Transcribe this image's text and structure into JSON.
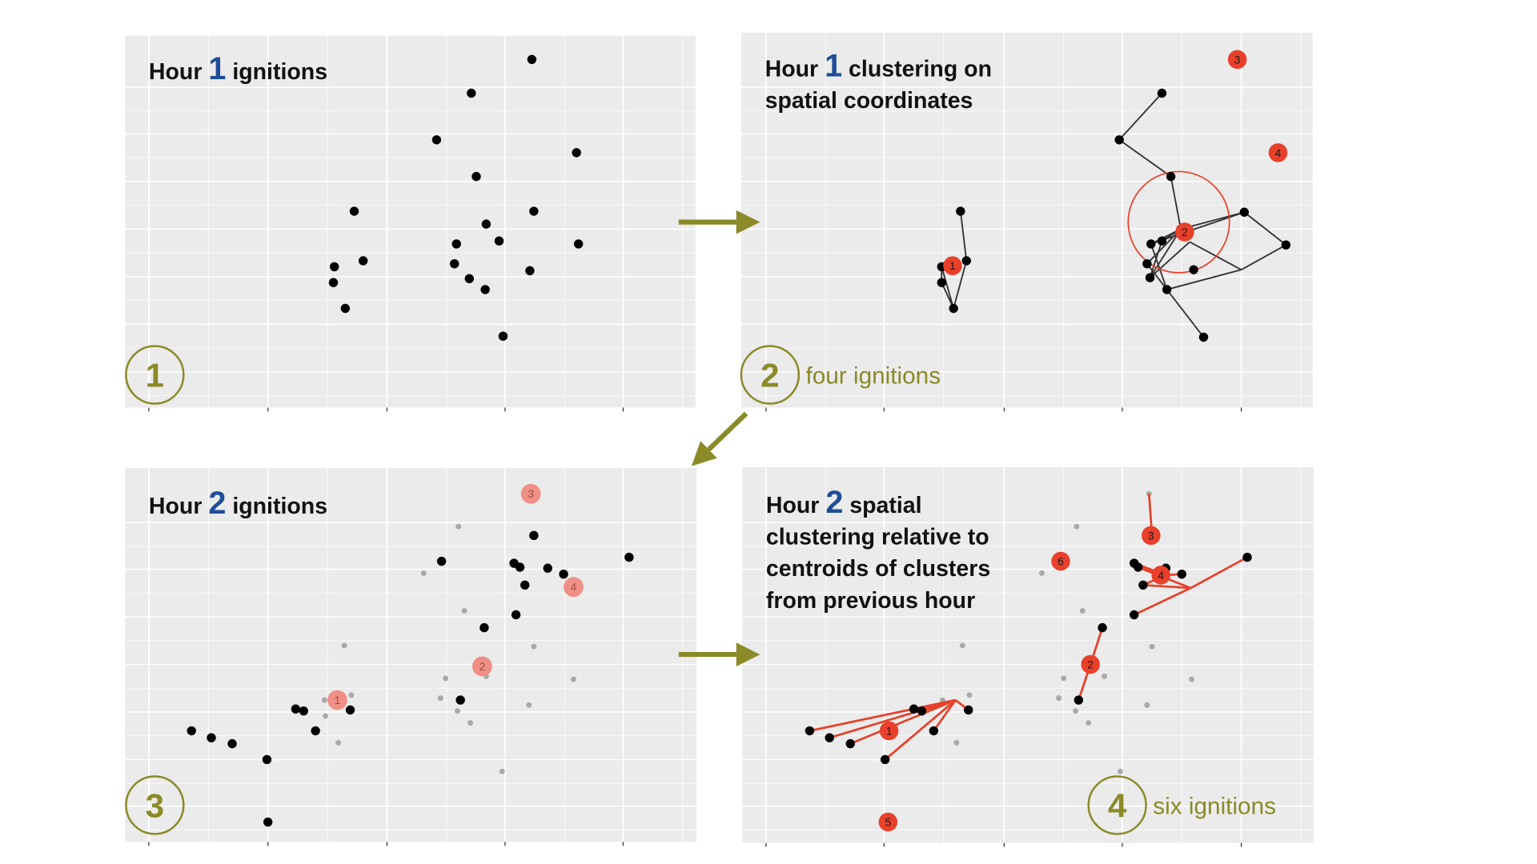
{
  "panels": [
    {
      "id": 1,
      "title_before": "Hour",
      "hour": "1",
      "title_lines": [
        "ignitions"
      ],
      "step": "1",
      "caption": "",
      "points": [
        [
          496,
          60
        ],
        [
          435,
          94
        ],
        [
          400,
          141
        ],
        [
          541,
          154
        ],
        [
          440,
          178
        ],
        [
          317,
          213
        ],
        [
          450,
          226
        ],
        [
          498,
          213
        ],
        [
          463,
          243
        ],
        [
          543,
          246
        ],
        [
          420,
          246
        ],
        [
          326,
          263
        ],
        [
          418,
          266
        ],
        [
          297,
          269
        ],
        [
          433,
          281
        ],
        [
          494,
          273
        ],
        [
          296,
          285
        ],
        [
          449,
          292
        ],
        [
          308,
          311
        ],
        [
          467,
          339
        ]
      ]
    },
    {
      "id": 2,
      "title_before": "Hour",
      "hour": "1",
      "title_lines": [
        "clustering on",
        "spatial coordinates"
      ],
      "step": "2",
      "caption": "four ignitions",
      "points": [
        [
          438,
          94
        ],
        [
          395,
          141
        ],
        [
          447,
          178
        ],
        [
          235,
          213
        ],
        [
          521,
          214
        ],
        [
          457,
          231
        ],
        [
          563,
          247
        ],
        [
          427,
          246
        ],
        [
          438,
          243
        ],
        [
          241,
          263
        ],
        [
          216,
          269
        ],
        [
          423,
          266
        ],
        [
          470,
          272
        ],
        [
          216,
          285
        ],
        [
          426,
          280
        ],
        [
          443,
          292
        ],
        [
          228,
          311
        ],
        [
          480,
          340
        ]
      ],
      "edges": [
        [
          [
            438,
            94
          ],
          [
            395,
            141
          ]
        ],
        [
          [
            395,
            141
          ],
          [
            447,
            178
          ]
        ],
        [
          [
            447,
            178
          ],
          [
            457,
            231
          ]
        ],
        [
          [
            457,
            231
          ],
          [
            521,
            214
          ]
        ],
        [
          [
            521,
            214
          ],
          [
            563,
            247
          ]
        ],
        [
          [
            563,
            247
          ],
          [
            518,
            272
          ]
        ],
        [
          [
            518,
            272
          ],
          [
            443,
            292
          ]
        ],
        [
          [
            443,
            292
          ],
          [
            480,
            340
          ]
        ],
        [
          [
            457,
            231
          ],
          [
            427,
            246
          ]
        ],
        [
          [
            457,
            231
          ],
          [
            438,
            243
          ]
        ],
        [
          [
            457,
            231
          ],
          [
            423,
            266
          ]
        ],
        [
          [
            457,
            231
          ],
          [
            426,
            280
          ]
        ],
        [
          [
            427,
            246
          ],
          [
            521,
            214
          ]
        ],
        [
          [
            427,
            246
          ],
          [
            443,
            292
          ]
        ],
        [
          [
            438,
            243
          ],
          [
            426,
            280
          ]
        ],
        [
          [
            423,
            266
          ],
          [
            443,
            292
          ]
        ],
        [
          [
            426,
            280
          ],
          [
            466,
            244
          ]
        ],
        [
          [
            466,
            244
          ],
          [
            518,
            272
          ]
        ],
        [
          [
            235,
            213
          ],
          [
            241,
            263
          ]
        ],
        [
          [
            241,
            263
          ],
          [
            228,
            311
          ]
        ],
        [
          [
            228,
            311
          ],
          [
            216,
            269
          ]
        ],
        [
          [
            216,
            269
          ],
          [
            216,
            285
          ]
        ],
        [
          [
            216,
            285
          ],
          [
            228,
            311
          ]
        ]
      ],
      "radius_circle": {
        "center": [
          455,
          224
        ]
      },
      "centroids": [
        {
          "label": "1",
          "at": [
            227,
            268
          ]
        },
        {
          "label": "2",
          "at": [
            461,
            234
          ]
        },
        {
          "label": "3",
          "at": [
            514,
            60
          ]
        },
        {
          "label": "4",
          "at": [
            555,
            154
          ]
        }
      ]
    },
    {
      "id": 3,
      "title_before": "Hour",
      "hour": "2",
      "title_lines": [
        "ignitions"
      ],
      "step": "3",
      "caption": "",
      "points": [
        [
          412,
          540
        ],
        [
          319,
          566
        ],
        [
          392,
          568
        ],
        [
          398,
          572
        ],
        [
          426,
          573
        ],
        [
          442,
          579
        ],
        [
          403,
          590
        ],
        [
          508,
          562
        ],
        [
          394,
          620
        ],
        [
          362,
          633
        ],
        [
          338,
          706
        ],
        [
          172,
          715
        ],
        [
          180,
          717
        ],
        [
          227,
          716
        ],
        [
          192,
          737
        ],
        [
          67,
          737
        ],
        [
          87,
          744
        ],
        [
          108,
          750
        ],
        [
          143,
          766
        ],
        [
          144,
          829
        ]
      ],
      "ghost_points": [
        [
          336,
          531
        ],
        [
          301,
          578
        ],
        [
          342,
          616
        ],
        [
          221,
          651
        ],
        [
          412,
          652
        ],
        [
          364,
          682
        ],
        [
          452,
          685
        ],
        [
          323,
          684
        ],
        [
          228,
          701
        ],
        [
          201,
          706
        ],
        [
          202,
          722
        ],
        [
          318,
          704
        ],
        [
          335,
          717
        ],
        [
          407,
          711
        ],
        [
          215,
          749
        ],
        [
          348,
          729
        ],
        [
          380,
          778
        ]
      ],
      "centroids": [
        {
          "label": "1",
          "at": [
            214,
            706
          ]
        },
        {
          "label": "2",
          "at": [
            360,
            672
          ]
        },
        {
          "label": "3",
          "at": [
            409,
            498
          ]
        },
        {
          "label": "4",
          "at": [
            452,
            592
          ]
        }
      ]
    },
    {
      "id": 4,
      "title_before": "Hour",
      "hour": "2",
      "title_lines": [
        "spatial",
        "clustering relative to",
        "centroids of clusters",
        "from previous hour"
      ],
      "step": "4",
      "caption": "six ignitions",
      "points": [
        [
          394,
          568
        ],
        [
          398,
          572
        ],
        [
          426,
          573
        ],
        [
          442,
          579
        ],
        [
          403,
          590
        ],
        [
          508,
          562
        ],
        [
          394,
          620
        ],
        [
          362,
          633
        ],
        [
          338,
          706
        ],
        [
          172,
          715
        ],
        [
          180,
          717
        ],
        [
          227,
          716
        ],
        [
          192,
          737
        ],
        [
          67,
          737
        ],
        [
          87,
          744
        ],
        [
          108,
          750
        ],
        [
          143,
          766
        ]
      ],
      "ghost_points": [
        [
          409,
          498
        ],
        [
          336,
          531
        ],
        [
          301,
          578
        ],
        [
          342,
          616
        ],
        [
          221,
          651
        ],
        [
          412,
          652
        ],
        [
          364,
          682
        ],
        [
          452,
          685
        ],
        [
          323,
          684
        ],
        [
          228,
          701
        ],
        [
          201,
          706
        ],
        [
          318,
          704
        ],
        [
          335,
          717
        ],
        [
          407,
          711
        ],
        [
          215,
          749
        ],
        [
          348,
          729
        ],
        [
          380,
          778
        ]
      ],
      "edges": [
        [
          [
            409,
            498
          ],
          [
            412,
            540
          ]
        ],
        [
          [
            426,
            580
          ],
          [
            394,
            568
          ]
        ],
        [
          [
            426,
            580
          ],
          [
            398,
            572
          ]
        ],
        [
          [
            426,
            580
          ],
          [
            442,
            579
          ]
        ],
        [
          [
            426,
            580
          ],
          [
            403,
            590
          ]
        ],
        [
          [
            451,
            593
          ],
          [
            508,
            562
          ]
        ],
        [
          [
            451,
            593
          ],
          [
            394,
            620
          ]
        ],
        [
          [
            451,
            593
          ],
          [
            398,
            572
          ]
        ],
        [
          [
            451,
            593
          ],
          [
            403,
            590
          ]
        ],
        [
          [
            350,
            670
          ],
          [
            362,
            633
          ]
        ],
        [
          [
            350,
            670
          ],
          [
            338,
            706
          ]
        ],
        [
          [
            214,
            706
          ],
          [
            67,
            737
          ]
        ],
        [
          [
            214,
            706
          ],
          [
            87,
            744
          ]
        ],
        [
          [
            214,
            706
          ],
          [
            108,
            750
          ]
        ],
        [
          [
            214,
            706
          ],
          [
            143,
            766
          ]
        ],
        [
          [
            214,
            706
          ],
          [
            192,
            737
          ]
        ],
        [
          [
            214,
            706
          ],
          [
            172,
            715
          ]
        ],
        [
          [
            214,
            706
          ],
          [
            180,
            717
          ]
        ],
        [
          [
            214,
            706
          ],
          [
            227,
            716
          ]
        ]
      ],
      "centroids": [
        {
          "label": "1",
          "at": [
            147,
            737
          ]
        },
        {
          "label": "2",
          "at": [
            350,
            670
          ]
        },
        {
          "label": "3",
          "at": [
            411,
            540
          ]
        },
        {
          "label": "4",
          "at": [
            421,
            580
          ]
        },
        {
          "label": "5",
          "at": [
            146,
            829
          ]
        },
        {
          "label": "6",
          "at": [
            320,
            566
          ]
        }
      ]
    }
  ],
  "colors": {
    "panel_bg": "#ebebeb",
    "grid": "#ffffff",
    "point": "#000000",
    "ghost": "#a9a9a9",
    "centroid": "#e8402a",
    "centroid_faded": "#ef8f86",
    "step": "#8a8a28",
    "arrow": "#8a8a28",
    "hour": "#1f4d99",
    "edge_dark": "#333333",
    "edge_red": "#e8402a"
  }
}
